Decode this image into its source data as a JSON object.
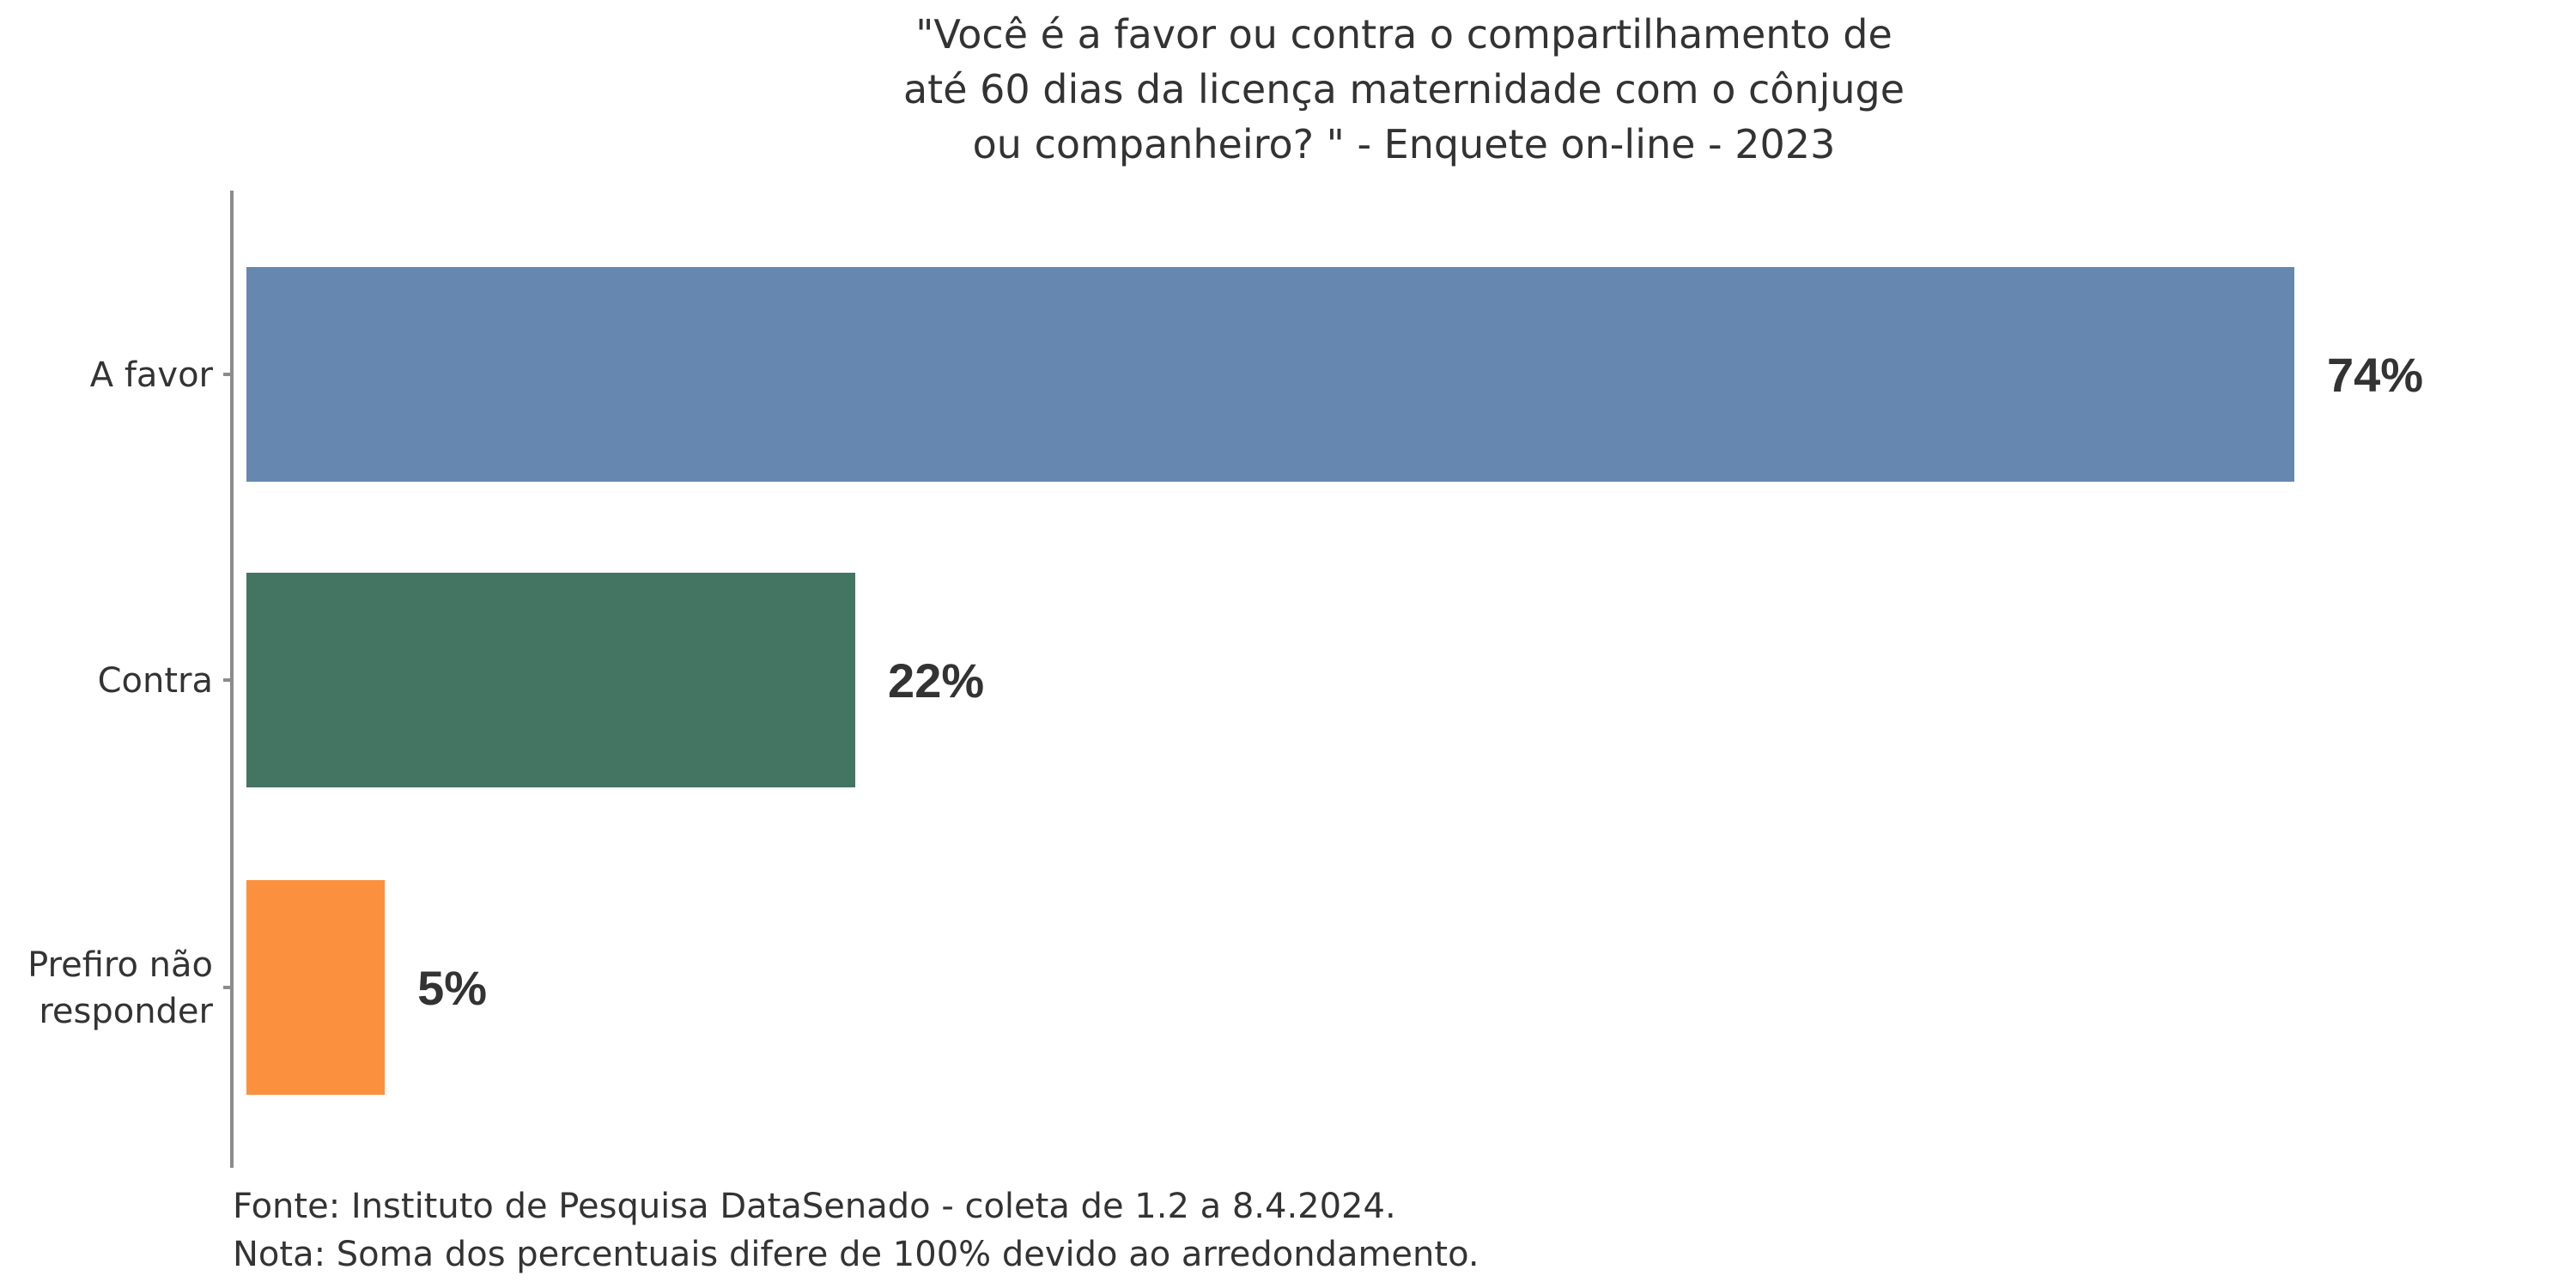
{
  "chart_data": {
    "type": "bar",
    "orientation": "horizontal",
    "title": "\"Você é a favor ou contra o compartilhamento de até 60 dias da licença maternidade com o cônjuge ou companheiro? \" - Enquete on-line - 2023",
    "title_lines": [
      "\"Você é a favor ou contra o compartilhamento de",
      "até 60 dias da licença maternidade com o cônjuge",
      "ou companheiro? \" - Enquete on-line - 2023"
    ],
    "categories": [
      "A favor",
      "Contra",
      "Prefiro não responder"
    ],
    "category_lines": [
      [
        "A favor"
      ],
      [
        "Contra"
      ],
      [
        "Prefiro não",
        "responder"
      ]
    ],
    "values": [
      74,
      22,
      5
    ],
    "value_labels": [
      "74%",
      "22%",
      "5%"
    ],
    "colors": [
      "#6688b0",
      "#447562",
      "#fb913f"
    ],
    "xlim": [
      0,
      80
    ],
    "grid": false,
    "legend": "none",
    "xlabel": "",
    "ylabel": ""
  },
  "footnotes": [
    "Fonte: Instituto de Pesquisa DataSenado - coleta de 1.2 a 8.4.2024.",
    "Nota: Soma dos percentuais difere de 100% devido ao arredondamento."
  ]
}
